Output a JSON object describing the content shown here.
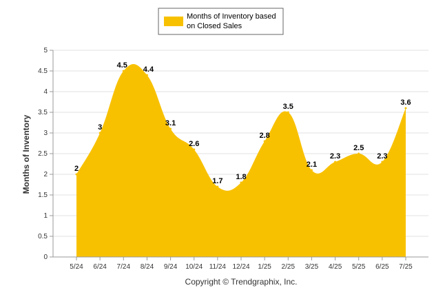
{
  "chart_data": {
    "type": "area",
    "categories": [
      "5/24",
      "6/24",
      "7/24",
      "8/24",
      "9/24",
      "10/24",
      "11/24",
      "12/24",
      "1/25",
      "2/25",
      "3/25",
      "4/25",
      "5/25",
      "6/25",
      "7/25"
    ],
    "series": [
      {
        "name": "Months of Inventory based on Closed Sales",
        "legend_lines": [
          "Months of Inventory based",
          "on Closed Sales"
        ],
        "values": [
          2,
          3,
          4.5,
          4.4,
          3.1,
          2.6,
          1.7,
          1.8,
          2.8,
          3.5,
          2.1,
          2.3,
          2.5,
          2.3,
          3.6
        ],
        "data_labels": [
          "2",
          "3",
          "4.5",
          "4.4",
          "3.1",
          "2.6",
          "1.7",
          "1.8",
          "2.8",
          "3.5",
          "2.1",
          "2.3",
          "2.5",
          "2.3",
          "3.6"
        ],
        "color": "#F8C100"
      }
    ],
    "ylabel": "Months of Inventory",
    "xlabel": "",
    "ylim": [
      0,
      5
    ],
    "yticks": [
      "0",
      "0.5",
      "1",
      "1.5",
      "2",
      "2.5",
      "3",
      "3.5",
      "4",
      "4.5",
      "5"
    ],
    "grid": true,
    "legend_position": "top-center",
    "footer": "Copyright © Trendgraphix, Inc."
  },
  "colors": {
    "area": "#F8C100",
    "grid": "#e0e0e0",
    "axis": "#999999",
    "legend_border": "#666666"
  }
}
